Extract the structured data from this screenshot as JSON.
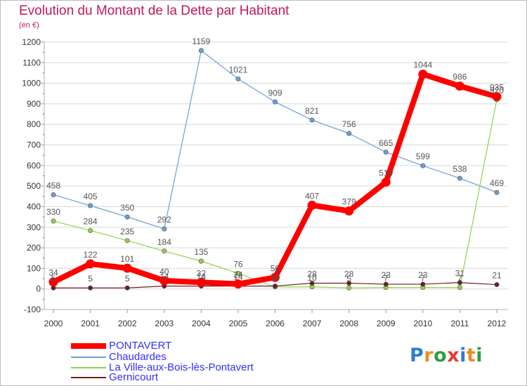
{
  "title": "Evolution du Montant de la Dette par Habitant",
  "subtitle": "(en €)",
  "logo": {
    "letters": [
      "P",
      "r",
      "o",
      "x",
      "i",
      "t",
      "i"
    ],
    "colors": [
      "#2e7dd1",
      "#ef8a1f",
      "#2e9e3f",
      "#e53935",
      "#2e7dd1",
      "#ef8a1f",
      "#2e9e3f"
    ]
  },
  "chart_data": {
    "type": "line",
    "x": [
      "2000",
      "2001",
      "2002",
      "2003",
      "2004",
      "2005",
      "2006",
      "2007",
      "2008",
      "2009",
      "2010",
      "2011",
      "2012"
    ],
    "ylim": [
      -100,
      1200
    ],
    "yticks": [
      -100,
      0,
      100,
      200,
      300,
      400,
      500,
      600,
      700,
      800,
      900,
      1000,
      1100,
      1200
    ],
    "grid": "horizontal",
    "legend_position": "bottom",
    "series": [
      {
        "name": "PONTAVERT",
        "color": "#ff0000",
        "values": [
          34,
          122,
          101,
          40,
          32,
          24,
          56,
          407,
          379,
          519,
          1044,
          986,
          935
        ]
      },
      {
        "name": "Chaudardes",
        "color": "#6a9fd4",
        "values": [
          458,
          405,
          350,
          292,
          1159,
          1021,
          909,
          821,
          756,
          665,
          599,
          538,
          469
        ]
      },
      {
        "name": "La Ville-aux-Bois-lès-Pontavert",
        "color": "#8fd14f",
        "values": [
          330,
          284,
          235,
          184,
          135,
          76,
          10,
          10,
          5,
          7,
          7,
          7,
          920
        ]
      },
      {
        "name": "Gernicourt",
        "color": "#6d1f1f",
        "values": [
          5,
          5,
          5,
          14,
          14,
          14,
          14,
          28,
          28,
          23,
          23,
          31,
          21
        ]
      }
    ]
  }
}
